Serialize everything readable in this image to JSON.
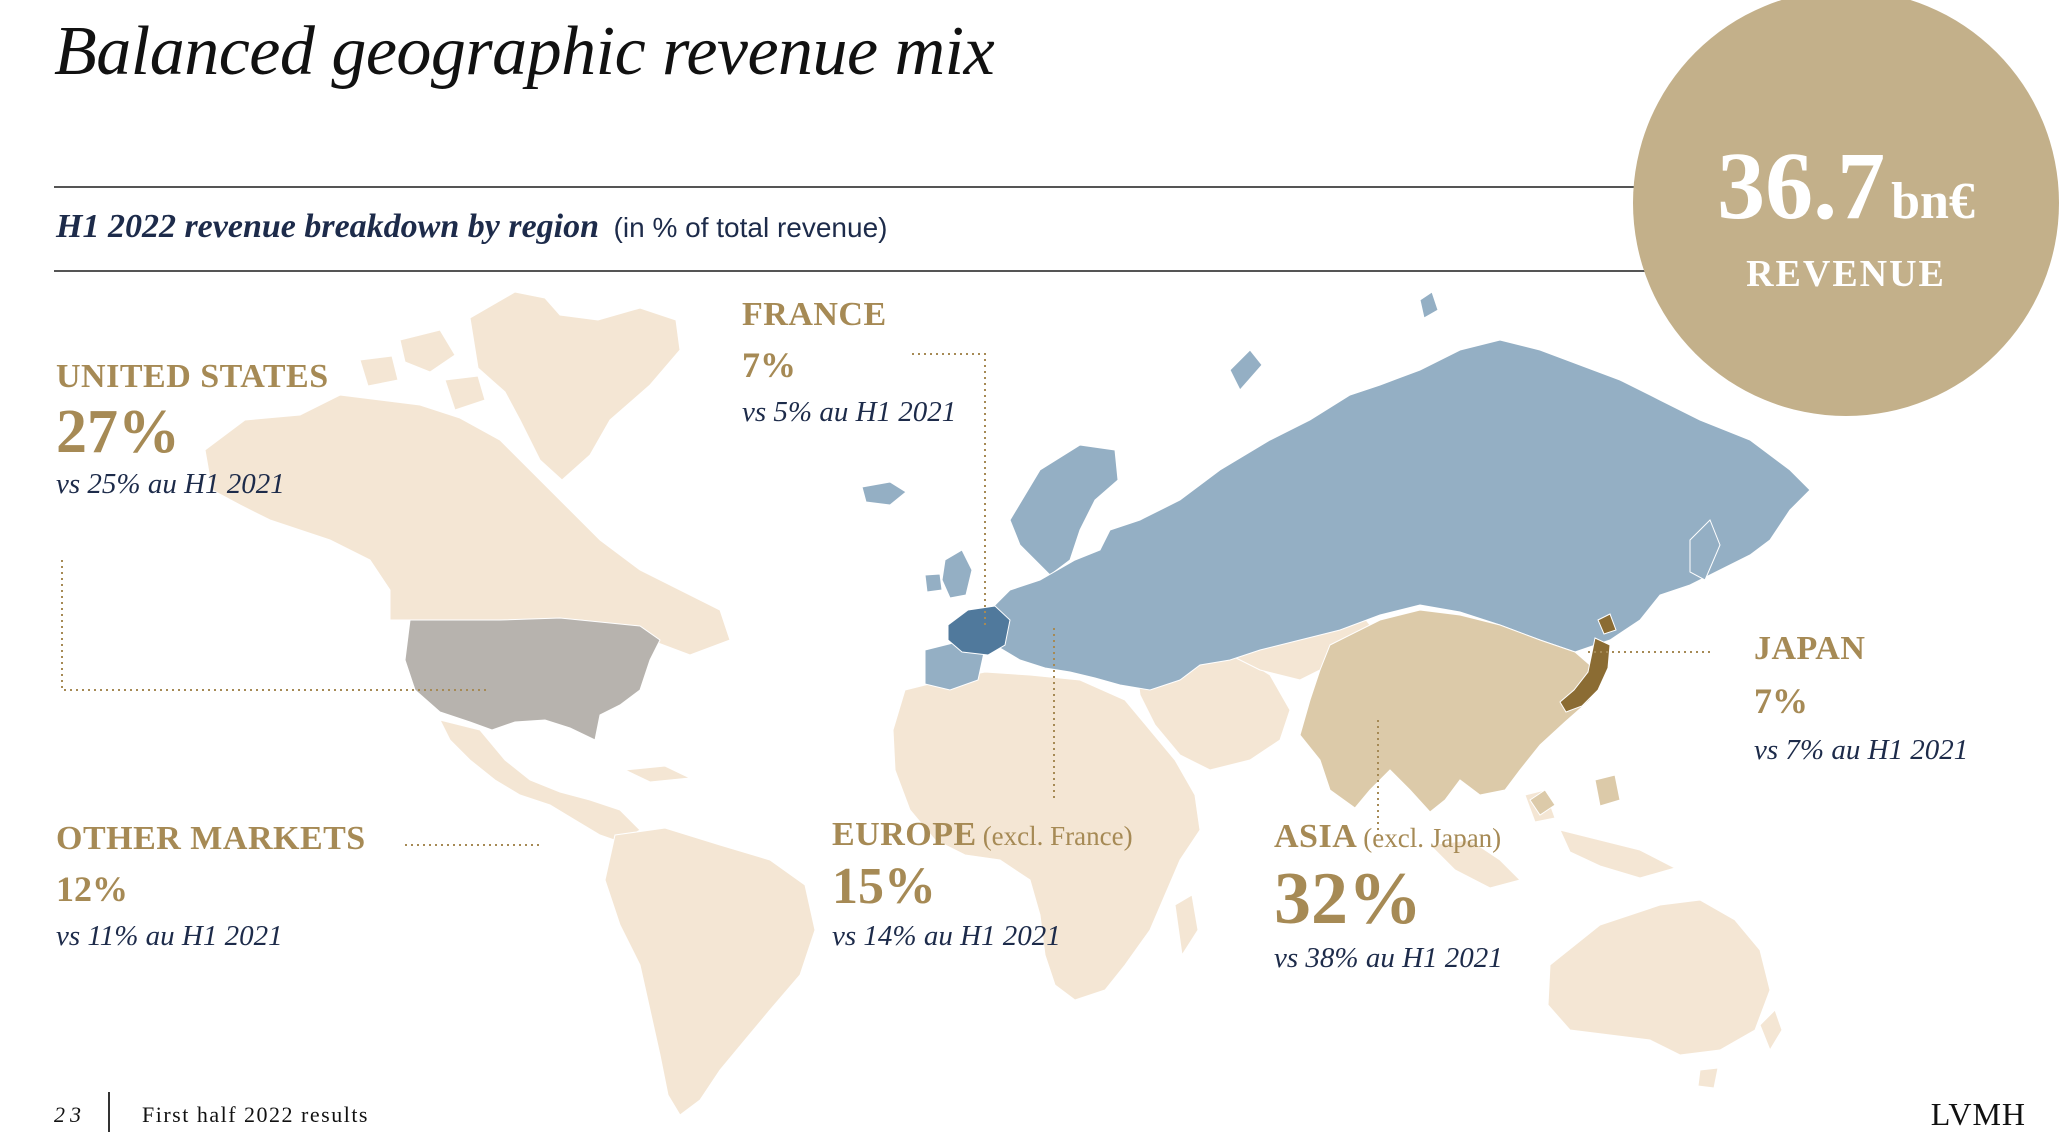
{
  "title": "Balanced geographic revenue mix",
  "subtitle": {
    "bold": "H1 2022 revenue breakdown by region",
    "note": "(in % of total revenue)"
  },
  "kpi": {
    "value": "36.7",
    "unit": "bn€",
    "label": "REVENUE"
  },
  "colors": {
    "land": "#f4e6d4",
    "europe": "#94afc4",
    "france": "#50799c",
    "usa": "#b7b3ae",
    "asia": "#dccaa9",
    "japan": "#8b6c33",
    "accent": "#a68a55",
    "navy": "#1d2b4a"
  },
  "regions": {
    "united_states": {
      "name": "UNITED STATES",
      "share": "27%",
      "comparison": "vs 25% au H1 2021"
    },
    "france": {
      "name": "FRANCE",
      "share": "7%",
      "comparison": "vs 5% au H1 2021"
    },
    "japan": {
      "name": "JAPAN",
      "share": "7%",
      "comparison": "vs 7% au H1 2021"
    },
    "other_markets": {
      "name": "OTHER MARKETS",
      "share": "12%",
      "comparison": "vs 11% au H1 2021"
    },
    "europe": {
      "name": "EUROPE",
      "qualifier": "(excl. France)",
      "share": "15%",
      "comparison": "vs 14% au H1 2021"
    },
    "asia": {
      "name": "ASIA",
      "qualifier": "(excl. Japan)",
      "share": "32%",
      "comparison": "vs 38% au H1 2021"
    }
  },
  "chart_data": {
    "type": "map",
    "categories": [
      "United States",
      "France",
      "Japan",
      "Other markets",
      "Europe (excl. France)",
      "Asia (excl. Japan)"
    ],
    "series": [
      {
        "name": "H1 2022",
        "values": [
          27,
          7,
          7,
          12,
          15,
          32
        ]
      },
      {
        "name": "H1 2021",
        "values": [
          25,
          5,
          7,
          11,
          14,
          38
        ]
      }
    ],
    "unit": "% of total revenue",
    "total_revenue_bn_eur": 36.7
  },
  "footer": {
    "page": "23",
    "text": "First half 2022 results",
    "logo": "LVMH"
  }
}
